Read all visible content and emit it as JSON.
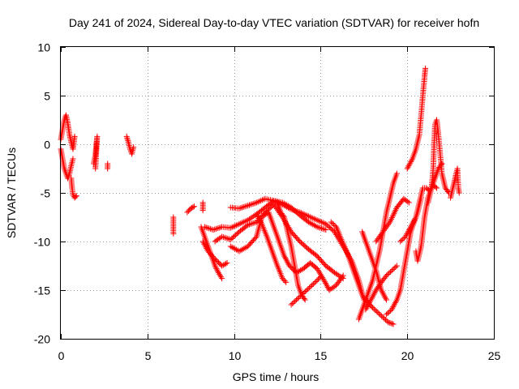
{
  "chart_data": {
    "type": "scatter",
    "title": "Day 241 of 2024, Sidereal Day-to-day VTEC variation (SDTVAR) for receiver hofn",
    "xlabel": "GPS time / hours",
    "ylabel": "SDTVAR / TECUs",
    "xlim": [
      0,
      25
    ],
    "ylim": [
      -20,
      10
    ],
    "x_ticks": [
      "0",
      "5",
      "10",
      "15",
      "20",
      "25"
    ],
    "y_ticks": [
      "10",
      "5",
      "0",
      "-5",
      "-10",
      "-15",
      "-20"
    ],
    "grid": true,
    "marker": "plus",
    "series": [
      {
        "name": "SDTVAR",
        "color": "#ff0000",
        "tracks": [
          [
            [
              0.0,
              0.5
            ],
            [
              0.1,
              1.5
            ],
            [
              0.2,
              2.5
            ],
            [
              0.3,
              3.0
            ],
            [
              0.4,
              2.2
            ],
            [
              0.5,
              1.0
            ],
            [
              0.6,
              0.2
            ],
            [
              0.7,
              -0.5
            ],
            [
              0.8,
              0.8
            ]
          ],
          [
            [
              0.0,
              -0.5
            ],
            [
              0.1,
              -1.5
            ],
            [
              0.2,
              -2.5
            ],
            [
              0.3,
              -3.0
            ],
            [
              0.4,
              -3.5
            ],
            [
              0.5,
              -3.0
            ],
            [
              0.6,
              -2.2
            ],
            [
              0.7,
              -1.5
            ]
          ],
          [
            [
              0.6,
              -3.5
            ],
            [
              0.65,
              -4.5
            ],
            [
              0.7,
              -5.2
            ],
            [
              0.8,
              -5.5
            ],
            [
              0.9,
              -5.3
            ]
          ],
          [
            [
              1.9,
              -2.0
            ],
            [
              2.0,
              -1.0
            ],
            [
              2.05,
              0.0
            ],
            [
              2.1,
              0.8
            ],
            [
              2.0,
              -2.5
            ]
          ],
          [
            [
              2.7,
              -2.0
            ],
            [
              2.7,
              -2.5
            ]
          ],
          [
            [
              3.8,
              0.8
            ],
            [
              3.9,
              0.2
            ],
            [
              4.0,
              -0.5
            ],
            [
              4.1,
              -1.0
            ],
            [
              4.2,
              -0.3
            ]
          ],
          [
            [
              6.5,
              -7.5
            ],
            [
              6.5,
              -9.2
            ]
          ],
          [
            [
              7.3,
              -7.0
            ],
            [
              7.5,
              -6.6
            ],
            [
              7.7,
              -6.4
            ]
          ],
          [
            [
              8.2,
              -6.0
            ],
            [
              8.2,
              -6.8
            ]
          ],
          [
            [
              8.1,
              -8.5
            ],
            [
              8.3,
              -9.5
            ],
            [
              8.5,
              -10.5
            ],
            [
              8.7,
              -11.5
            ],
            [
              8.9,
              -12.5
            ],
            [
              9.1,
              -13.2
            ],
            [
              9.3,
              -13.8
            ]
          ],
          [
            [
              8.2,
              -10.0
            ],
            [
              8.5,
              -11.0
            ],
            [
              8.9,
              -11.8
            ],
            [
              9.3,
              -12.5
            ],
            [
              9.6,
              -12.2
            ]
          ],
          [
            [
              8.3,
              -8.5
            ],
            [
              8.8,
              -8.8
            ],
            [
              9.3,
              -8.5
            ],
            [
              9.8,
              -8.6
            ],
            [
              10.3,
              -8.2
            ],
            [
              10.8,
              -7.8
            ],
            [
              11.3,
              -7.2
            ],
            [
              11.8,
              -6.5
            ],
            [
              12.3,
              -5.8
            ],
            [
              12.8,
              -6.0
            ],
            [
              13.3,
              -6.5
            ],
            [
              13.8,
              -7.3
            ],
            [
              14.3,
              -8.0
            ],
            [
              14.8,
              -8.5
            ],
            [
              15.3,
              -8.8
            ]
          ],
          [
            [
              8.9,
              -10.0
            ],
            [
              9.3,
              -9.5
            ],
            [
              9.8,
              -9.8
            ],
            [
              10.3,
              -9.0
            ],
            [
              10.8,
              -8.3
            ],
            [
              11.3,
              -8.0
            ],
            [
              11.8,
              -7.0
            ],
            [
              12.3,
              -6.2
            ],
            [
              12.8,
              -7.5
            ],
            [
              13.3,
              -9.0
            ],
            [
              13.8,
              -10.0
            ],
            [
              14.3,
              -10.8
            ],
            [
              14.8,
              -11.5
            ],
            [
              15.3,
              -12.5
            ],
            [
              15.8,
              -13.2
            ],
            [
              16.3,
              -13.8
            ]
          ],
          [
            [
              9.8,
              -6.5
            ],
            [
              10.3,
              -6.6
            ],
            [
              10.8,
              -6.3
            ],
            [
              11.3,
              -6.0
            ],
            [
              11.8,
              -5.6
            ],
            [
              12.3,
              -5.8
            ],
            [
              12.8,
              -6.2
            ],
            [
              13.3,
              -6.7
            ],
            [
              13.8,
              -7.0
            ],
            [
              14.3,
              -7.4
            ],
            [
              14.8,
              -7.8
            ],
            [
              15.3,
              -8.2
            ],
            [
              15.8,
              -9.0
            ],
            [
              16.3,
              -10.5
            ],
            [
              16.8,
              -12.0
            ],
            [
              17.2,
              -14.0
            ],
            [
              17.5,
              -16.0
            ]
          ],
          [
            [
              9.8,
              -10.5
            ],
            [
              10.3,
              -11.0
            ],
            [
              10.8,
              -10.5
            ],
            [
              11.3,
              -9.5
            ],
            [
              11.6,
              -7.5
            ],
            [
              12.0,
              -7.0
            ],
            [
              12.3,
              -8.5
            ],
            [
              12.6,
              -10.0
            ],
            [
              12.9,
              -11.5
            ],
            [
              13.2,
              -12.5
            ],
            [
              13.6,
              -13.2
            ],
            [
              14.0,
              -12.8
            ],
            [
              14.4,
              -12.2
            ],
            [
              14.8,
              -12.8
            ],
            [
              15.2,
              -14.0
            ],
            [
              15.5,
              -15.0
            ],
            [
              15.9,
              -14.5
            ],
            [
              16.3,
              -13.5
            ]
          ],
          [
            [
              11.3,
              -7.2
            ],
            [
              11.6,
              -8.2
            ],
            [
              11.9,
              -9.5
            ],
            [
              12.2,
              -11.0
            ],
            [
              12.5,
              -12.5
            ],
            [
              12.8,
              -13.8
            ],
            [
              13.0,
              -14.2
            ]
          ],
          [
            [
              12.5,
              -6.0
            ],
            [
              12.7,
              -7.0
            ],
            [
              12.9,
              -7.5
            ],
            [
              13.1,
              -9.0
            ],
            [
              13.3,
              -10.5
            ],
            [
              13.5,
              -12.5
            ],
            [
              13.7,
              -14.5
            ],
            [
              13.9,
              -15.5
            ],
            [
              14.1,
              -16.0
            ]
          ],
          [
            [
              13.3,
              -16.5
            ],
            [
              13.6,
              -16.0
            ],
            [
              13.9,
              -15.5
            ],
            [
              14.2,
              -15.0
            ],
            [
              14.5,
              -14.5
            ],
            [
              14.8,
              -14.0
            ],
            [
              15.0,
              -13.6
            ]
          ],
          [
            [
              15.6,
              -8.0
            ],
            [
              15.9,
              -8.5
            ],
            [
              16.2,
              -9.8
            ],
            [
              16.5,
              -11.0
            ],
            [
              16.8,
              -12.5
            ],
            [
              17.1,
              -14.0
            ],
            [
              17.4,
              -15.5
            ],
            [
              17.7,
              -16.2
            ],
            [
              18.0,
              -16.8
            ],
            [
              18.3,
              -17.3
            ],
            [
              18.6,
              -17.8
            ],
            [
              18.9,
              -18.3
            ],
            [
              19.2,
              -18.5
            ]
          ],
          [
            [
              17.2,
              -18.0
            ],
            [
              17.4,
              -17.0
            ],
            [
              17.6,
              -16.0
            ],
            [
              17.8,
              -15.0
            ],
            [
              18.0,
              -14.0
            ],
            [
              18.2,
              -12.5
            ],
            [
              18.4,
              -11.0
            ],
            [
              18.6,
              -9.0
            ],
            [
              18.8,
              -7.0
            ],
            [
              19.0,
              -5.5
            ],
            [
              19.2,
              -4.0
            ],
            [
              19.4,
              -3.0
            ]
          ],
          [
            [
              17.4,
              -9.0
            ],
            [
              17.7,
              -10.5
            ],
            [
              18.0,
              -12.0
            ],
            [
              18.2,
              -13.0
            ],
            [
              18.5,
              -15.0
            ],
            [
              18.8,
              -16.0
            ]
          ],
          [
            [
              17.6,
              -17.0
            ],
            [
              17.9,
              -16.0
            ],
            [
              18.2,
              -15.0
            ],
            [
              18.5,
              -14.2
            ],
            [
              18.8,
              -13.5
            ],
            [
              19.1,
              -13.0
            ],
            [
              19.4,
              -12.5
            ]
          ],
          [
            [
              18.2,
              -10.0
            ],
            [
              18.6,
              -9.0
            ],
            [
              19.0,
              -8.0
            ],
            [
              19.4,
              -6.5
            ],
            [
              19.8,
              -5.6
            ],
            [
              20.1,
              -6.0
            ]
          ],
          [
            [
              18.8,
              -17.5
            ],
            [
              19.1,
              -17.0
            ],
            [
              19.4,
              -16.0
            ],
            [
              19.6,
              -15.0
            ],
            [
              19.8,
              -13.0
            ],
            [
              20.0,
              -11.0
            ],
            [
              20.2,
              -9.0
            ],
            [
              20.4,
              -8.0
            ],
            [
              20.6,
              -7.0
            ],
            [
              20.8,
              -5.5
            ]
          ],
          [
            [
              19.6,
              -10.0
            ],
            [
              19.9,
              -9.5
            ],
            [
              20.2,
              -8.5
            ],
            [
              20.5,
              -7.5
            ],
            [
              20.7,
              -6.0
            ],
            [
              20.9,
              -4.5
            ],
            [
              21.1,
              -4.5
            ],
            [
              21.3,
              -4.8
            ],
            [
              21.5,
              -4.2
            ],
            [
              21.7,
              -4.5
            ]
          ],
          [
            [
              20.0,
              -2.5
            ],
            [
              20.3,
              -1.5
            ],
            [
              20.5,
              -0.5
            ],
            [
              20.7,
              1.0
            ],
            [
              20.8,
              3.0
            ],
            [
              20.9,
              5.0
            ],
            [
              21.0,
              7.0
            ],
            [
              21.05,
              7.8
            ]
          ],
          [
            [
              20.5,
              -11.0
            ],
            [
              20.6,
              -12.0
            ],
            [
              20.8,
              -10.5
            ],
            [
              20.9,
              -9.0
            ],
            [
              21.0,
              -7.5
            ],
            [
              21.1,
              -6.5
            ],
            [
              21.2,
              -5.5
            ],
            [
              21.4,
              -4.5
            ],
            [
              21.6,
              -3.5
            ],
            [
              21.8,
              -2.5
            ],
            [
              22.0,
              -2.0
            ]
          ],
          [
            [
              21.2,
              -6.0
            ],
            [
              21.4,
              -4.5
            ],
            [
              21.5,
              -2.5
            ],
            [
              21.55,
              0.0
            ],
            [
              21.6,
              2.0
            ],
            [
              21.7,
              2.5
            ],
            [
              21.8,
              1.0
            ],
            [
              21.9,
              -1.0
            ],
            [
              22.0,
              -3.0
            ],
            [
              22.2,
              -4.5
            ],
            [
              22.4,
              -5.0
            ]
          ],
          [
            [
              22.5,
              -5.5
            ],
            [
              22.7,
              -4.0
            ],
            [
              22.8,
              -3.2
            ],
            [
              22.9,
              -2.5
            ],
            [
              22.95,
              -4.5
            ],
            [
              23.0,
              -5.0
            ]
          ]
        ]
      }
    ]
  }
}
